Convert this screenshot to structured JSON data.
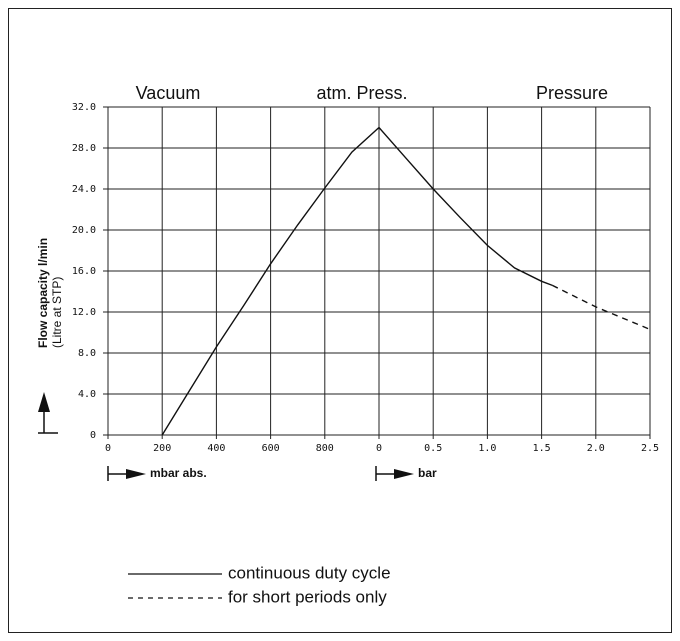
{
  "chart_data": {
    "type": "line",
    "annotations": [
      "Vacuum",
      "atm. Press.",
      "Pressure"
    ],
    "y_label": "Flow capacity l/min",
    "y_label_sub": "(Litre at STP)",
    "x_label": "mbar abs.",
    "x2_label": "bar",
    "xlim": [
      0,
      1000
    ],
    "xticks": [
      0,
      200,
      400,
      600,
      800
    ],
    "x2lim": [
      0,
      2.5
    ],
    "x2ticks": [
      0,
      0.5,
      {
        "value": 1,
        "label": "1.0"
      },
      1.5,
      {
        "value": 2,
        "label": "2.0"
      },
      2.5
    ],
    "ylim": [
      0,
      32
    ],
    "yticks": [
      0,
      {
        "value": 4,
        "label": "4.0"
      },
      {
        "value": 8,
        "label": "8.0"
      },
      {
        "value": 12,
        "label": "12.0"
      },
      {
        "value": 16,
        "label": "16.0"
      },
      {
        "value": 20,
        "label": "20.0"
      },
      {
        "value": 24,
        "label": "24.0"
      },
      {
        "value": 28,
        "label": "28.0"
      },
      {
        "value": 32,
        "label": "32.0"
      }
    ],
    "grid": true,
    "series": [
      {
        "name": "continuous duty cycle",
        "color": "#111111",
        "dash": "solid",
        "parts": [
          {
            "axis": "x",
            "x": [
              200,
              300,
              400,
              500,
              600,
              700,
              800,
              900,
              1000
            ],
            "values": [
              0,
              4.3,
              8.6,
              12.6,
              16.7,
              20.5,
              24.1,
              27.6,
              30
            ]
          },
          {
            "axis": "x2",
            "x": [
              0,
              0.25,
              0.5,
              0.75,
              1.0,
              1.25,
              1.5,
              1.6
            ],
            "values": [
              30,
              27,
              24,
              21.2,
              18.5,
              16.3,
              15,
              14.6
            ]
          }
        ]
      },
      {
        "name": "for short periods only",
        "color": "#111111",
        "dash": "dashed",
        "parts": [
          {
            "axis": "x2",
            "x": [
              1.6,
              2.0,
              2.5
            ],
            "values": [
              14.6,
              12.5,
              10.3
            ]
          }
        ]
      }
    ]
  }
}
